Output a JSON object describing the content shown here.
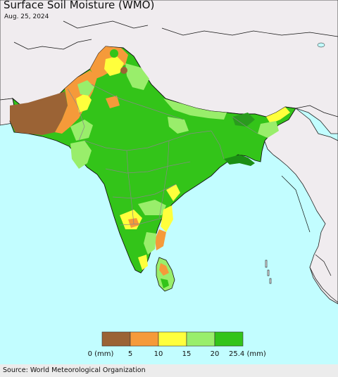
{
  "header": {
    "title": "Surface Soil Moisture (WMO)",
    "date": "Aug. 25, 2024"
  },
  "legend": {
    "ticks": [
      "0 (mm)",
      "5",
      "10",
      "15",
      "20",
      "25.4 (mm)"
    ],
    "colors": [
      "#9b6335",
      "#f59a3a",
      "#ffff3c",
      "#99ee6b",
      "#33c419"
    ]
  },
  "colors": {
    "ocean": "#c2fdff",
    "land_outside": "#f0ecef",
    "border": "#000000",
    "internal_border": "#888888",
    "footer_bg": "#ececec"
  },
  "footer": {
    "source": "Source: World Meteorological Organization"
  }
}
